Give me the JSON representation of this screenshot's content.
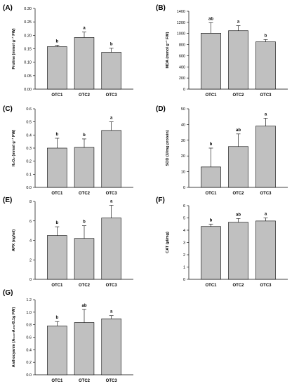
{
  "chart_data": [
    {
      "type": "bar",
      "panel": "(A)",
      "categories": [
        "OTC1",
        "OTC2",
        "OTC3"
      ],
      "values": [
        0.158,
        0.192,
        0.137
      ],
      "errors": [
        0.005,
        0.02,
        0.015
      ],
      "significance": [
        "b",
        "a",
        "b"
      ],
      "ylabel": "Proline (mmol g⁻¹ FW)",
      "ylim": [
        0,
        0.3
      ],
      "yticks": [
        0.0,
        0.05,
        0.1,
        0.15,
        0.2,
        0.25,
        0.3
      ],
      "ytick_labels": [
        "0.00",
        "0.05",
        "0.10",
        "0.15",
        "0.20",
        "0.25",
        "0.30"
      ]
    },
    {
      "type": "bar",
      "panel": "(B)",
      "categories": [
        "OTC1",
        "OTC2",
        "OTC3"
      ],
      "values": [
        1005,
        1050,
        850
      ],
      "errors": [
        190,
        90,
        40
      ],
      "significance": [
        "ab",
        "a",
        "b"
      ],
      "ylabel": "MDA (mmol g⁻¹ FW)",
      "ylim": [
        0,
        1400
      ],
      "yticks": [
        0,
        200,
        400,
        600,
        800,
        1000,
        1200,
        1400
      ],
      "ytick_labels": [
        "0",
        "200",
        "400",
        "600",
        "800",
        "1000",
        "1200",
        "1400"
      ]
    },
    {
      "type": "bar",
      "panel": "(C)",
      "categories": [
        "OTC1",
        "OTC2",
        "OTC3"
      ],
      "values": [
        0.3,
        0.305,
        0.435
      ],
      "errors": [
        0.075,
        0.065,
        0.065
      ],
      "significance": [
        "b",
        "b",
        "a"
      ],
      "ylabel": "H₂O₂ (mmol g⁻¹ FW)",
      "ylim": [
        0,
        0.6
      ],
      "yticks": [
        0.0,
        0.1,
        0.2,
        0.3,
        0.4,
        0.5,
        0.6
      ],
      "ytick_labels": [
        "0.0",
        "0.1",
        "0.2",
        "0.3",
        "0.4",
        "0.5",
        "0.6"
      ]
    },
    {
      "type": "bar",
      "panel": "(D)",
      "categories": [
        "OTC1",
        "OTC2",
        "OTC3"
      ],
      "values": [
        13,
        26,
        39
      ],
      "errors": [
        12,
        8,
        5
      ],
      "significance": [
        "b",
        "ab",
        "a"
      ],
      "ylabel": "SOD (U/mg protein)",
      "ylim": [
        0,
        50
      ],
      "yticks": [
        0,
        10,
        20,
        30,
        40,
        50
      ],
      "ytick_labels": [
        "0",
        "10",
        "20",
        "30",
        "40",
        "50"
      ]
    },
    {
      "type": "bar",
      "panel": "(E)",
      "categories": [
        "OTC1",
        "OTC2",
        "OTC3"
      ],
      "values": [
        4.5,
        4.2,
        6.3
      ],
      "errors": [
        0.9,
        1.3,
        1.3
      ],
      "significance": [
        "b",
        "b",
        "a"
      ],
      "ylabel": "APX (ng/ml)",
      "ylim": [
        0,
        8
      ],
      "yticks": [
        0,
        2,
        4,
        6,
        8
      ],
      "ytick_labels": [
        "0",
        "2",
        "4",
        "6",
        "8"
      ]
    },
    {
      "type": "bar",
      "panel": "(F)",
      "categories": [
        "OTC1",
        "OTC2",
        "OTC3"
      ],
      "values": [
        4.3,
        4.65,
        4.75
      ],
      "errors": [
        0.2,
        0.3,
        0.25
      ],
      "significance": [
        "b",
        "ab",
        "a"
      ],
      "ylabel": "CAT (µl/mg)",
      "ylim": [
        0,
        6
      ],
      "yticks": [
        0,
        1,
        2,
        3,
        4,
        5,
        6
      ],
      "ytick_labels": [
        "0",
        "1",
        "2",
        "3",
        "4",
        "5",
        "6"
      ]
    },
    {
      "type": "bar",
      "panel": "(G)",
      "categories": [
        "OTC1",
        "OTC2",
        "OTC3"
      ],
      "values": [
        0.78,
        0.835,
        0.895
      ],
      "errors": [
        0.07,
        0.21,
        0.05
      ],
      "significance": [
        "b",
        "ab",
        "a"
      ],
      "ylabel": "Anthocyanin (A₅₃₀-A₆₅₇/0.1g FW)",
      "ylim": [
        0,
        1.2
      ],
      "yticks": [
        0.0,
        0.2,
        0.4,
        0.6,
        0.8,
        1.0,
        1.2
      ],
      "ytick_labels": [
        "0.0",
        "0.2",
        "0.4",
        "0.6",
        "0.8",
        "1.0",
        "1.2"
      ]
    }
  ],
  "colors": {
    "bar_fill": "#c0c0c0",
    "bar_stroke": "#000000",
    "axis": "#000000"
  }
}
